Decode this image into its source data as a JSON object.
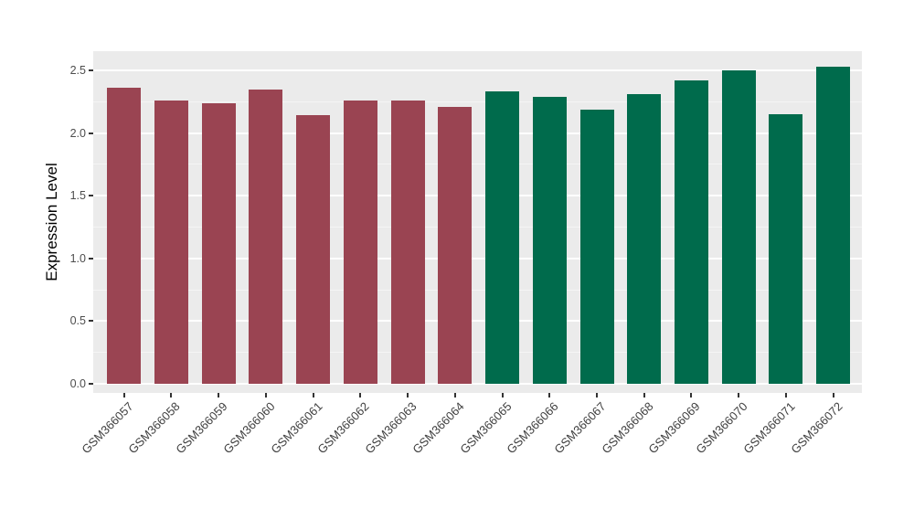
{
  "chart_data": {
    "type": "bar",
    "title": "",
    "xlabel": "",
    "ylabel": "Expression Level",
    "categories": [
      "GSM366057",
      "GSM366058",
      "GSM366059",
      "GSM366060",
      "GSM366061",
      "GSM366062",
      "GSM366063",
      "GSM366064",
      "GSM366065",
      "GSM366066",
      "GSM366067",
      "GSM366068",
      "GSM366069",
      "GSM366070",
      "GSM366071",
      "GSM366072"
    ],
    "bars": [
      {
        "label": "GSM366057",
        "value": 2.36,
        "group": "group1"
      },
      {
        "label": "GSM366058",
        "value": 2.26,
        "group": "group1"
      },
      {
        "label": "GSM366059",
        "value": 2.24,
        "group": "group1"
      },
      {
        "label": "GSM366060",
        "value": 2.35,
        "group": "group1"
      },
      {
        "label": "GSM366061",
        "value": 2.14,
        "group": "group1"
      },
      {
        "label": "GSM366062",
        "value": 2.26,
        "group": "group1"
      },
      {
        "label": "GSM366063",
        "value": 2.26,
        "group": "group1"
      },
      {
        "label": "GSM366064",
        "value": 2.21,
        "group": "group1"
      },
      {
        "label": "GSM366065",
        "value": 2.33,
        "group": "group2"
      },
      {
        "label": "GSM366066",
        "value": 2.29,
        "group": "group2"
      },
      {
        "label": "GSM366067",
        "value": 2.19,
        "group": "group2"
      },
      {
        "label": "GSM366068",
        "value": 2.31,
        "group": "group2"
      },
      {
        "label": "GSM366069",
        "value": 2.42,
        "group": "group2"
      },
      {
        "label": "GSM366070",
        "value": 2.5,
        "group": "group2"
      },
      {
        "label": "GSM366071",
        "value": 2.15,
        "group": "group2"
      },
      {
        "label": "GSM366072",
        "value": 2.53,
        "group": "group2"
      }
    ],
    "group_colors": {
      "group1": "#9A4452",
      "group2": "#006B4C"
    },
    "y_axis": {
      "tick_values": [
        0.0,
        0.5,
        1.0,
        1.5,
        2.0,
        2.5
      ],
      "tick_labels": [
        "0.0",
        "0.5",
        "1.0",
        "1.5",
        "2.0",
        "2.5"
      ],
      "minor_tick_values": [
        0.25,
        0.75,
        1.25,
        1.75,
        2.25
      ],
      "ylim": [
        -0.07,
        2.65
      ]
    },
    "style": {
      "panel_background": "#EBEBEB",
      "major_grid_color": "#FFFFFF",
      "minor_grid_color": "#F5F5F5",
      "axis_text_color": "#4D4D4D",
      "legend": "none",
      "grid": "on"
    }
  }
}
